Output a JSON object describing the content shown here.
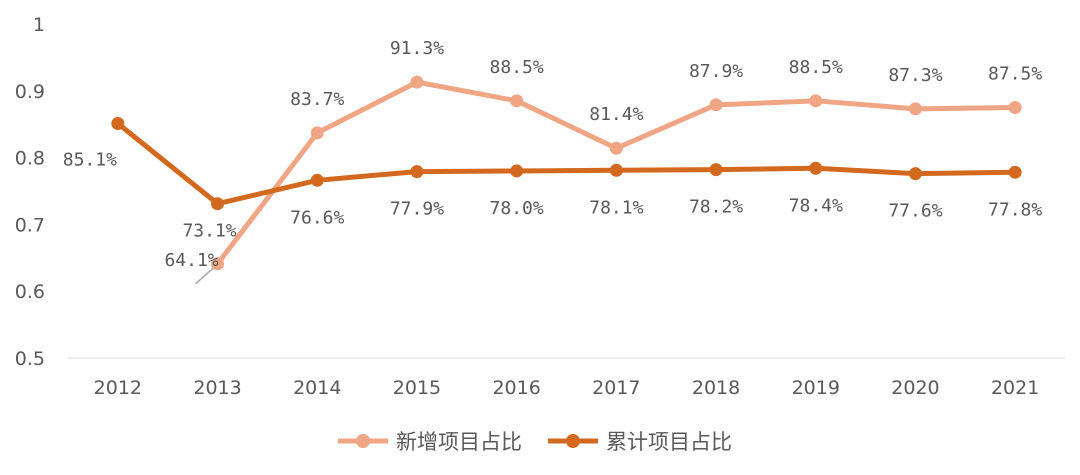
{
  "chart_data": {
    "type": "line",
    "title": "",
    "xlabel": "",
    "ylabel": "",
    "ylim": [
      0.5,
      1
    ],
    "yticks": [
      "0.5",
      "0.6",
      "0.7",
      "0.8",
      "0.9",
      "1"
    ],
    "categories": [
      "2012",
      "2013",
      "2014",
      "2015",
      "2016",
      "2017",
      "2018",
      "2019",
      "2020",
      "2021"
    ],
    "legend_position": "bottom",
    "series": [
      {
        "name": "新增项目占比",
        "color": "#F0A585",
        "values": [
          null,
          0.641,
          0.837,
          0.913,
          0.885,
          0.814,
          0.879,
          0.885,
          0.873,
          0.875
        ],
        "labels": [
          "",
          "64.1%",
          "83.7%",
          "91.3%",
          "88.5%",
          "81.4%",
          "87.9%",
          "88.5%",
          "87.3%",
          "87.5%"
        ]
      },
      {
        "name": "累计项目占比",
        "color": "#D2691E",
        "values": [
          0.851,
          0.731,
          0.766,
          0.779,
          0.78,
          0.781,
          0.782,
          0.784,
          0.776,
          0.778
        ],
        "labels": [
          "85.1%",
          "73.1%",
          "76.6%",
          "77.9%",
          "78.0%",
          "78.1%",
          "78.2%",
          "78.4%",
          "77.6%",
          "77.8%"
        ]
      }
    ]
  }
}
